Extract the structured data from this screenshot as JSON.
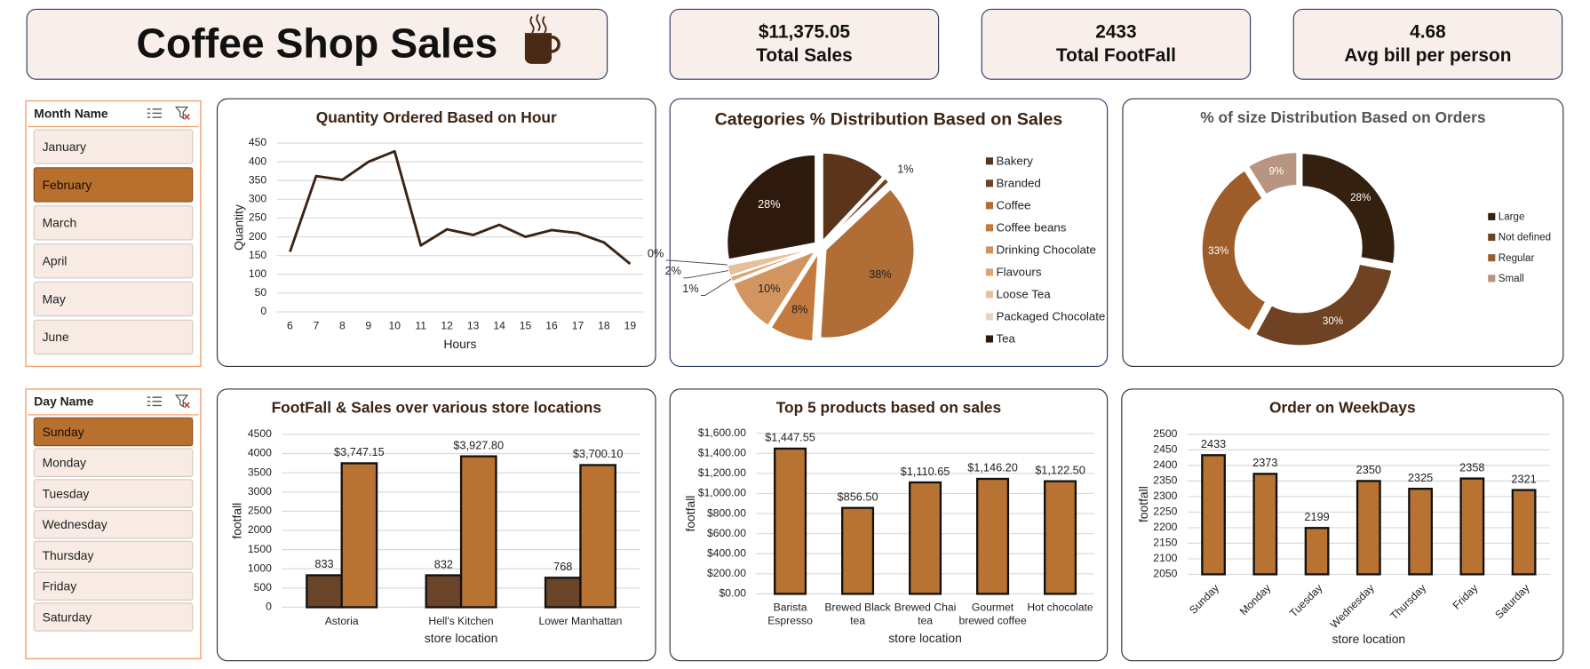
{
  "header": {
    "title": "Coffee Shop Sales"
  },
  "kpis": [
    {
      "value": "$11,375.05",
      "label": "Total Sales"
    },
    {
      "value": "2433",
      "label": "Total FootFall"
    },
    {
      "value": "4.68",
      "label": "Avg bill per person"
    }
  ],
  "slicers": [
    {
      "title": "Month Name",
      "items": [
        "January",
        "February",
        "March",
        "April",
        "May",
        "June"
      ],
      "selected": "February"
    },
    {
      "title": "Day Name",
      "items": [
        "Sunday",
        "Monday",
        "Tuesday",
        "Wednesday",
        "Thursday",
        "Friday",
        "Saturday"
      ],
      "selected": "Sunday"
    }
  ],
  "chart_data": [
    {
      "type": "line",
      "title": "Quantity Ordered Based on Hour",
      "x_label": "Hours",
      "y_label": "Quantity",
      "categories": [
        6,
        7,
        8,
        9,
        10,
        11,
        12,
        13,
        14,
        15,
        16,
        17,
        18,
        19
      ],
      "values": [
        160,
        362,
        352,
        400,
        428,
        177,
        220,
        205,
        232,
        200,
        218,
        210,
        185,
        128
      ],
      "color": "#3b2314",
      "ylim": [
        0,
        450
      ],
      "yticks": [
        0,
        50,
        100,
        150,
        200,
        250,
        300,
        350,
        400,
        450
      ],
      "grid": true
    },
    {
      "type": "pie",
      "title": "Categories % Distribution Based on Sales",
      "categories": [
        "Bakery",
        "Branded",
        "Coffee",
        "Coffee beans",
        "Drinking Chocolate",
        "Flavours",
        "Loose Tea",
        "Packaged Chocolate",
        "Tea"
      ],
      "values": [
        12,
        1,
        38,
        8,
        10,
        1,
        2,
        0,
        28
      ],
      "value_labels": [
        null,
        "1%",
        "38%",
        "8%",
        "10%",
        "1%",
        "2%",
        "0%",
        "28%"
      ],
      "colors": [
        "#5a3519",
        "#6e4223",
        "#b06d35",
        "#c27a3e",
        "#d3955f",
        "#dba676",
        "#e6bf9b",
        "#eed3b9",
        "#2e1a0c"
      ],
      "legend": "right"
    },
    {
      "type": "donut",
      "title": "% of size Distribution Based on Orders",
      "categories": [
        "Large",
        "Not defined",
        "Regular",
        "Small"
      ],
      "values": [
        28,
        30,
        33,
        9
      ],
      "value_labels": [
        "28%",
        "30%",
        "33%",
        "9%"
      ],
      "colors": [
        "#34200f",
        "#6e4223",
        "#9c5d2a",
        "#b89580"
      ],
      "legend": "right"
    },
    {
      "type": "bar",
      "title": "FootFall & Sales over various store locations",
      "x_label": "store location",
      "y_label": "footfall",
      "categories": [
        "Astoria",
        "Hell's Kitchen",
        "Lower Manhattan"
      ],
      "series": [
        {
          "color": "#6b4529",
          "values": [
            833,
            832,
            768
          ]
        },
        {
          "color": "#b87333",
          "values": [
            3747.15,
            3927.8,
            3700.1
          ],
          "value_labels": [
            "$3,747.15",
            "$3,927.80",
            "$3,700.10"
          ]
        }
      ],
      "ylim": [
        0,
        4500
      ],
      "yticks": [
        0,
        500,
        1000,
        1500,
        2000,
        2500,
        3000,
        3500,
        4000,
        4500
      ],
      "grid": true
    },
    {
      "type": "bar",
      "title": "Top 5 products based on sales",
      "x_label": "store location",
      "y_label": "footfall",
      "categories": [
        "Barista Espresso",
        "Brewed Black tea",
        "Brewed Chai tea",
        "Gourmet brewed coffee",
        "Hot chocolate"
      ],
      "series": [
        {
          "color": "#b87333",
          "values": [
            1447.55,
            856.5,
            1110.65,
            1146.2,
            1122.5
          ],
          "value_labels": [
            "$1,447.55",
            "$856.50",
            "$1,110.65",
            "$1,146.20",
            "$1,122.50"
          ]
        }
      ],
      "ylim": [
        0,
        1600
      ],
      "yticks": [
        {
          "value": 0,
          "label": "$0.00"
        },
        {
          "value": 200,
          "label": "$200.00"
        },
        {
          "value": 400,
          "label": "$400.00"
        },
        {
          "value": 600,
          "label": "$600.00"
        },
        {
          "value": 800,
          "label": "$800.00"
        },
        {
          "value": 1000,
          "label": "$1,000.00"
        },
        {
          "value": 1200,
          "label": "$1,200.00"
        },
        {
          "value": 1400,
          "label": "$1,400.00"
        },
        {
          "value": 1600,
          "label": "$1,600.00"
        }
      ],
      "grid": true
    },
    {
      "type": "bar",
      "title": "Order on WeekDays",
      "x_label": "store location",
      "y_label": "footfall",
      "categories": [
        "Sunday",
        "Monday",
        "Tuesday",
        "Wednesday",
        "Thursday",
        "Friday",
        "Saturday"
      ],
      "series": [
        {
          "color": "#b87333",
          "values": [
            2433,
            2373,
            2199,
            2350,
            2325,
            2358,
            2321
          ]
        }
      ],
      "ylim": [
        2050,
        2500
      ],
      "yticks": [
        2050,
        2100,
        2150,
        2200,
        2250,
        2300,
        2350,
        2400,
        2450,
        2500
      ],
      "grid": true
    }
  ]
}
